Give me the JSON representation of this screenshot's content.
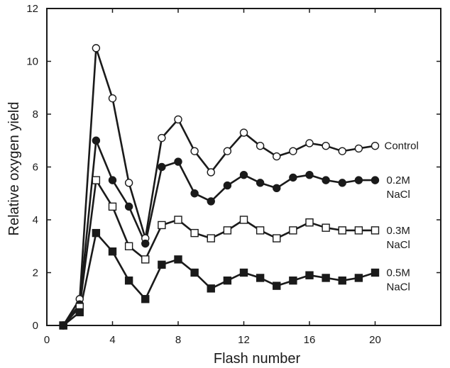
{
  "chart_data": {
    "type": "line",
    "xlabel": "Flash number",
    "ylabel": "Relative oxygen yield",
    "xlim": [
      0,
      24
    ],
    "ylim": [
      0,
      12
    ],
    "xticks": [
      0,
      4,
      8,
      12,
      16,
      20
    ],
    "yticks": [
      0,
      2,
      4,
      6,
      8,
      10,
      12
    ],
    "grid": false,
    "x": [
      1,
      2,
      3,
      4,
      5,
      6,
      7,
      8,
      9,
      10,
      11,
      12,
      13,
      14,
      15,
      16,
      17,
      18,
      19,
      20
    ],
    "series": [
      {
        "name": "Control",
        "label_lines": [
          "Control"
        ],
        "marker": "open-circle",
        "values": [
          0,
          1.0,
          10.5,
          8.6,
          5.4,
          3.3,
          7.1,
          7.8,
          6.6,
          5.8,
          6.6,
          7.3,
          6.8,
          6.4,
          6.6,
          6.9,
          6.8,
          6.6,
          6.7,
          6.8
        ]
      },
      {
        "name": "0.2M NaCl",
        "label_lines": [
          "0.2M",
          "NaCl"
        ],
        "marker": "filled-circle",
        "values": [
          0,
          0.8,
          7.0,
          5.5,
          4.5,
          3.1,
          6.0,
          6.2,
          5.0,
          4.7,
          5.3,
          5.7,
          5.4,
          5.2,
          5.6,
          5.7,
          5.5,
          5.4,
          5.5,
          5.5
        ]
      },
      {
        "name": "0.3M NaCl",
        "label_lines": [
          "0.3M",
          "NaCl"
        ],
        "marker": "open-square",
        "values": [
          0,
          0.7,
          5.5,
          4.5,
          3.0,
          2.5,
          3.8,
          4.0,
          3.5,
          3.3,
          3.6,
          4.0,
          3.6,
          3.3,
          3.6,
          3.9,
          3.7,
          3.6,
          3.6,
          3.6
        ]
      },
      {
        "name": "0.5M NaCl",
        "label_lines": [
          "0.5M",
          "NaCl"
        ],
        "marker": "filled-square",
        "values": [
          0,
          0.5,
          3.5,
          2.8,
          1.7,
          1.0,
          2.3,
          2.5,
          2.0,
          1.4,
          1.7,
          2.0,
          1.8,
          1.5,
          1.7,
          1.9,
          1.8,
          1.7,
          1.8,
          2.0
        ]
      }
    ]
  }
}
